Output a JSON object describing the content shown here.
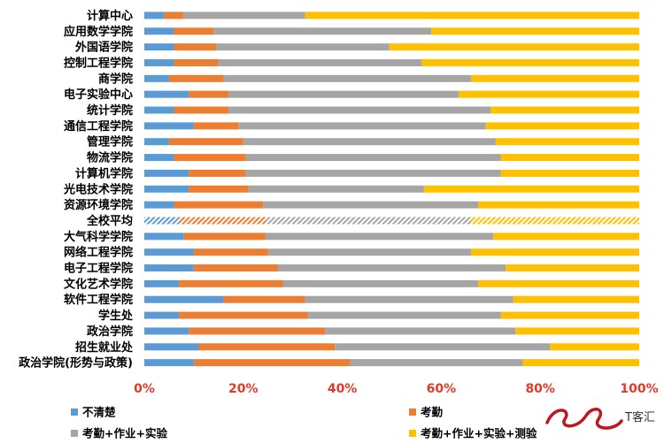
{
  "chart_data": {
    "type": "bar",
    "orientation": "horizontal",
    "stacked": "percent",
    "categories": [
      "计算中心",
      "应用数学学院",
      "外国语学院",
      "控制工程学院",
      "商学院",
      "电子实验中心",
      "统计学院",
      "通信工程学院",
      "管理学院",
      "物流学院",
      "计算机学院",
      "光电技术学院",
      "资源环境学院",
      "全校平均",
      "大气科学学院",
      "网络工程学院",
      "电子工程学院",
      "文化艺术学院",
      "软件工程学院",
      "学生处",
      "政治学院",
      "招生就业处",
      "政治学院(形势与政策)"
    ],
    "highlight_category": "全校平均",
    "series": [
      {
        "name": "不清楚",
        "color": "#5b9bd5",
        "values": [
          4,
          6,
          6,
          6,
          5,
          9,
          6,
          10,
          5,
          6,
          9,
          9,
          6,
          7,
          8,
          10,
          10,
          7,
          16,
          7,
          9,
          11,
          10
        ]
      },
      {
        "name": "考勤",
        "color": "#ed7d31",
        "values": [
          4,
          8,
          8.5,
          9,
          11,
          8,
          11,
          9,
          15,
          14.5,
          11.5,
          12,
          18,
          17.5,
          16.5,
          15,
          17,
          21,
          16.5,
          26,
          27.5,
          27.5,
          31.5
        ]
      },
      {
        "name": "考勤+作业+实验",
        "color": "#a5a5a5",
        "values": [
          24.5,
          44,
          35,
          41,
          50,
          46.5,
          53,
          50,
          51,
          51.5,
          51.5,
          35.5,
          43.5,
          41.5,
          46,
          41,
          46,
          39.5,
          42,
          39,
          38.5,
          43.5,
          35
        ]
      },
      {
        "name": "考勤+作业+实验+测验",
        "color": "#ffc000",
        "values": [
          67.5,
          42,
          50.5,
          44,
          34,
          36.5,
          30,
          31,
          29,
          28,
          28,
          43.5,
          32.5,
          34,
          29.5,
          34,
          27,
          32.5,
          25.5,
          28,
          25,
          18,
          23.5
        ]
      }
    ],
    "x_ticks": [
      "0%",
      "20%",
      "40%",
      "60%",
      "80%",
      "100%"
    ],
    "xlim": [
      0,
      100
    ],
    "legend_position": "bottom",
    "grid": false
  },
  "watermark": {
    "text": "T客汇"
  }
}
